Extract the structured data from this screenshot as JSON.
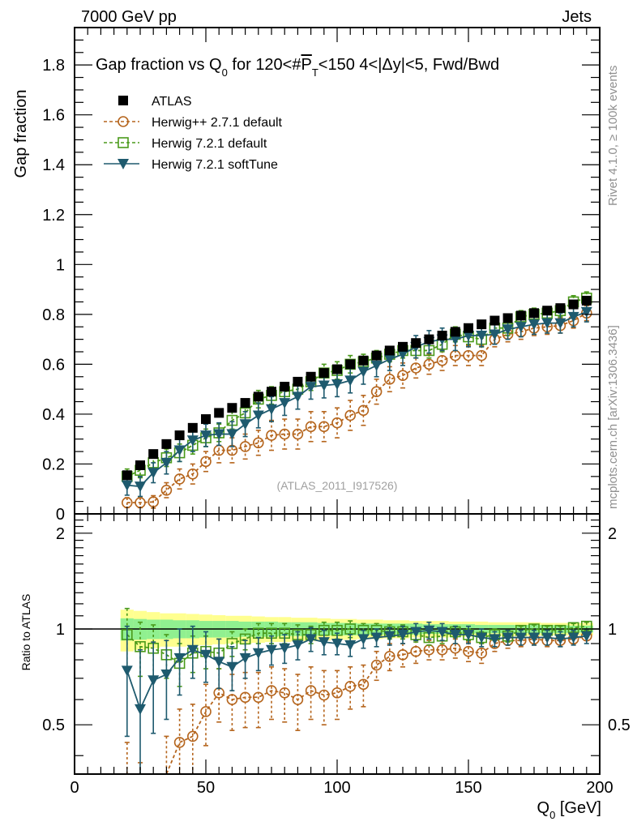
{
  "header": {
    "left_label": "7000 GeV pp",
    "right_label": "Jets"
  },
  "side_labels": {
    "rivet": "Rivet 4.1.0, ≥ 100k events",
    "mcplots": "mcplots.cern.ch [arXiv:1306.3436]"
  },
  "watermark": "(ATLAS_2011_I917526)",
  "chart_data": [
    {
      "type": "scatter",
      "panel": "main",
      "title": "Gap fraction vs Q0 for 120<#PT<150  4<|Δy|<5, Fwd/Bwd",
      "title_parts": {
        "pre": "Gap fraction vs Q",
        "sub0": "0",
        "mid": " for 120<#",
        "pt": "P",
        "subT": "T",
        "post": "<150  4<|Δy|<5, Fwd/Bwd"
      },
      "xlabel": "",
      "ylabel": "Gap fraction",
      "xlim": [
        0,
        200
      ],
      "ylim": [
        0,
        1.95
      ],
      "yticks": [
        0,
        0.2,
        0.4,
        0.6,
        0.8,
        1,
        1.2,
        1.4,
        1.6,
        1.8
      ],
      "ytick_labels": [
        "0",
        "0.2",
        "0.4",
        "0.6",
        "0.8",
        "1",
        "1.2",
        "1.4",
        "1.6",
        "1.8"
      ],
      "legend_position": "top-left",
      "x": [
        20,
        25,
        30,
        35,
        40,
        45,
        50,
        55,
        60,
        65,
        70,
        75,
        80,
        85,
        90,
        95,
        100,
        105,
        110,
        115,
        120,
        125,
        130,
        135,
        140,
        145,
        150,
        155,
        160,
        165,
        170,
        175,
        180,
        185,
        190,
        195
      ],
      "series": [
        {
          "name": "ATLAS",
          "color": "#000000",
          "marker": "filled-square",
          "line": "none",
          "values": [
            0.155,
            0.195,
            0.24,
            0.28,
            0.315,
            0.345,
            0.38,
            0.405,
            0.425,
            0.445,
            0.47,
            0.49,
            0.51,
            0.53,
            0.55,
            0.565,
            0.58,
            0.6,
            0.615,
            0.635,
            0.655,
            0.67,
            0.685,
            0.7,
            0.715,
            0.73,
            0.745,
            0.76,
            0.775,
            0.785,
            0.795,
            0.805,
            0.815,
            0.825,
            0.84,
            0.855
          ],
          "errors": [
            0.01,
            0.01,
            0.01,
            0.01,
            0.01,
            0.01,
            0.01,
            0.01,
            0.01,
            0.01,
            0.01,
            0.01,
            0.01,
            0.01,
            0.01,
            0.01,
            0.01,
            0.01,
            0.01,
            0.01,
            0.01,
            0.01,
            0.01,
            0.01,
            0.01,
            0.01,
            0.01,
            0.01,
            0.01,
            0.01,
            0.01,
            0.01,
            0.01,
            0.01,
            0.01,
            0.01
          ]
        },
        {
          "name": "Herwig++ 2.7.1 default",
          "color": "#b5651d",
          "marker": "open-circle",
          "line": "dashed",
          "values": [
            0.045,
            0.045,
            0.048,
            0.095,
            0.14,
            0.16,
            0.21,
            0.255,
            0.255,
            0.27,
            0.285,
            0.315,
            0.32,
            0.32,
            0.35,
            0.35,
            0.365,
            0.395,
            0.415,
            0.49,
            0.54,
            0.555,
            0.585,
            0.6,
            0.615,
            0.635,
            0.635,
            0.635,
            0.7,
            0.72,
            0.73,
            0.745,
            0.75,
            0.755,
            0.775,
            0.805
          ],
          "errors": [
            0.02,
            0.02,
            0.025,
            0.03,
            0.04,
            0.04,
            0.04,
            0.05,
            0.05,
            0.05,
            0.05,
            0.06,
            0.06,
            0.06,
            0.06,
            0.06,
            0.06,
            0.06,
            0.06,
            0.05,
            0.05,
            0.05,
            0.04,
            0.04,
            0.04,
            0.04,
            0.04,
            0.04,
            0.03,
            0.03,
            0.03,
            0.03,
            0.03,
            0.03,
            0.03,
            0.03
          ]
        },
        {
          "name": "Herwig 7.2.1 default",
          "color": "#4a9a1a",
          "marker": "open-square",
          "line": "dashed",
          "values": [
            0.15,
            0.175,
            0.205,
            0.225,
            0.245,
            0.275,
            0.305,
            0.325,
            0.375,
            0.405,
            0.46,
            0.475,
            0.49,
            0.5,
            0.53,
            0.565,
            0.575,
            0.6,
            0.61,
            0.625,
            0.64,
            0.655,
            0.655,
            0.655,
            0.68,
            0.72,
            0.71,
            0.7,
            0.745,
            0.745,
            0.79,
            0.8,
            0.805,
            0.815,
            0.85,
            0.865
          ],
          "errors": [
            0.03,
            0.03,
            0.03,
            0.035,
            0.035,
            0.035,
            0.035,
            0.035,
            0.035,
            0.035,
            0.035,
            0.035,
            0.035,
            0.035,
            0.035,
            0.035,
            0.035,
            0.035,
            0.03,
            0.03,
            0.03,
            0.03,
            0.03,
            0.03,
            0.03,
            0.03,
            0.03,
            0.03,
            0.03,
            0.03,
            0.025,
            0.025,
            0.025,
            0.025,
            0.025,
            0.025
          ]
        },
        {
          "name": "Herwig 7.2.1 softTune",
          "color": "#1e5a6e",
          "marker": "filled-triangle-down",
          "line": "solid",
          "values": [
            0.115,
            0.11,
            0.165,
            0.205,
            0.255,
            0.295,
            0.315,
            0.32,
            0.32,
            0.36,
            0.395,
            0.42,
            0.445,
            0.47,
            0.51,
            0.515,
            0.52,
            0.535,
            0.57,
            0.595,
            0.62,
            0.64,
            0.67,
            0.69,
            0.7,
            0.7,
            0.715,
            0.715,
            0.72,
            0.74,
            0.75,
            0.76,
            0.765,
            0.765,
            0.79,
            0.81
          ],
          "errors": [
            0.04,
            0.04,
            0.04,
            0.045,
            0.045,
            0.045,
            0.045,
            0.045,
            0.05,
            0.05,
            0.05,
            0.05,
            0.05,
            0.05,
            0.05,
            0.05,
            0.05,
            0.05,
            0.05,
            0.045,
            0.045,
            0.045,
            0.045,
            0.045,
            0.045,
            0.045,
            0.045,
            0.045,
            0.04,
            0.04,
            0.04,
            0.04,
            0.04,
            0.04,
            0.04,
            0.04
          ]
        }
      ]
    },
    {
      "type": "scatter",
      "panel": "ratio",
      "xlabel": "Q0 [GeV]",
      "xlabel_parts": {
        "pre": "Q",
        "sub": "0",
        "post": " [GeV]"
      },
      "ylabel": "Ratio to ATLAS",
      "xlim": [
        0,
        200
      ],
      "ylim": [
        0.35,
        2.3
      ],
      "yscale": "log",
      "xticks": [
        0,
        50,
        100,
        150,
        200
      ],
      "xtick_labels": [
        "0",
        "50",
        "100",
        "150",
        "200"
      ],
      "yticks": [
        0.5,
        1,
        2
      ],
      "ytick_labels": [
        "0.5",
        "1",
        "2"
      ],
      "reference_line": 1,
      "bands": {
        "stat_color": "#90f090",
        "total_color": "#ffff90",
        "stat_halfwidth": [
          0.08,
          0.075,
          0.07,
          0.07,
          0.065,
          0.065,
          0.06,
          0.06,
          0.06,
          0.055,
          0.055,
          0.055,
          0.05,
          0.05,
          0.05,
          0.045,
          0.045,
          0.045,
          0.04,
          0.04,
          0.04,
          0.04,
          0.04,
          0.035,
          0.035,
          0.035,
          0.035,
          0.03,
          0.03,
          0.03,
          0.03,
          0.03,
          0.03,
          0.03,
          0.025,
          0.025
        ],
        "total_halfwidth": [
          0.15,
          0.14,
          0.13,
          0.12,
          0.12,
          0.115,
          0.11,
          0.105,
          0.1,
          0.1,
          0.095,
          0.09,
          0.09,
          0.085,
          0.085,
          0.08,
          0.075,
          0.075,
          0.07,
          0.07,
          0.065,
          0.065,
          0.06,
          0.06,
          0.06,
          0.055,
          0.055,
          0.055,
          0.05,
          0.05,
          0.05,
          0.05,
          0.045,
          0.045,
          0.045,
          0.045
        ]
      },
      "series": [
        {
          "name": "Herwig++ 2.7.1 default",
          "values": [
            0.29,
            0.23,
            0.2,
            0.34,
            0.44,
            0.46,
            0.55,
            0.63,
            0.6,
            0.61,
            0.61,
            0.64,
            0.63,
            0.6,
            0.64,
            0.62,
            0.63,
            0.66,
            0.67,
            0.77,
            0.82,
            0.83,
            0.85,
            0.86,
            0.86,
            0.87,
            0.85,
            0.84,
            0.9,
            0.92,
            0.92,
            0.93,
            0.92,
            0.92,
            0.93,
            0.95
          ],
          "errors": [
            0.15,
            0.15,
            0.13,
            0.12,
            0.12,
            0.12,
            0.12,
            0.12,
            0.12,
            0.12,
            0.12,
            0.12,
            0.12,
            0.12,
            0.12,
            0.12,
            0.11,
            0.1,
            0.1,
            0.08,
            0.08,
            0.07,
            0.07,
            0.06,
            0.06,
            0.06,
            0.06,
            0.06,
            0.05,
            0.05,
            0.04,
            0.04,
            0.04,
            0.04,
            0.03,
            0.03
          ]
        },
        {
          "name": "Herwig 7.2.1 default",
          "values": [
            0.96,
            0.88,
            0.87,
            0.83,
            0.78,
            0.84,
            0.85,
            0.84,
            0.9,
            0.93,
            0.97,
            0.97,
            0.97,
            0.96,
            0.96,
            0.99,
            0.99,
            1.0,
            0.99,
            0.99,
            0.98,
            0.98,
            0.96,
            0.94,
            0.95,
            0.98,
            0.96,
            0.94,
            0.96,
            0.95,
            0.99,
            1.0,
            0.99,
            0.99,
            1.01,
            1.02
          ],
          "errors": [
            0.2,
            0.17,
            0.16,
            0.13,
            0.12,
            0.11,
            0.1,
            0.09,
            0.08,
            0.07,
            0.07,
            0.07,
            0.07,
            0.07,
            0.06,
            0.06,
            0.06,
            0.06,
            0.05,
            0.05,
            0.05,
            0.05,
            0.05,
            0.05,
            0.05,
            0.04,
            0.04,
            0.04,
            0.04,
            0.04,
            0.03,
            0.03,
            0.03,
            0.03,
            0.03,
            0.03
          ]
        },
        {
          "name": "Herwig 7.2.1 softTune",
          "values": [
            0.74,
            0.56,
            0.69,
            0.72,
            0.81,
            0.86,
            0.83,
            0.79,
            0.76,
            0.81,
            0.84,
            0.86,
            0.87,
            0.89,
            0.93,
            0.91,
            0.9,
            0.89,
            0.93,
            0.94,
            0.95,
            0.96,
            0.98,
            0.99,
            0.98,
            0.96,
            0.96,
            0.94,
            0.93,
            0.94,
            0.94,
            0.94,
            0.94,
            0.93,
            0.94,
            0.95
          ],
          "errors": [
            0.28,
            0.3,
            0.22,
            0.2,
            0.19,
            0.16,
            0.15,
            0.14,
            0.12,
            0.11,
            0.1,
            0.09,
            0.09,
            0.09,
            0.08,
            0.08,
            0.07,
            0.07,
            0.06,
            0.06,
            0.06,
            0.06,
            0.06,
            0.06,
            0.06,
            0.06,
            0.06,
            0.06,
            0.05,
            0.05,
            0.05,
            0.05,
            0.05,
            0.05,
            0.05,
            0.05
          ]
        }
      ]
    }
  ]
}
